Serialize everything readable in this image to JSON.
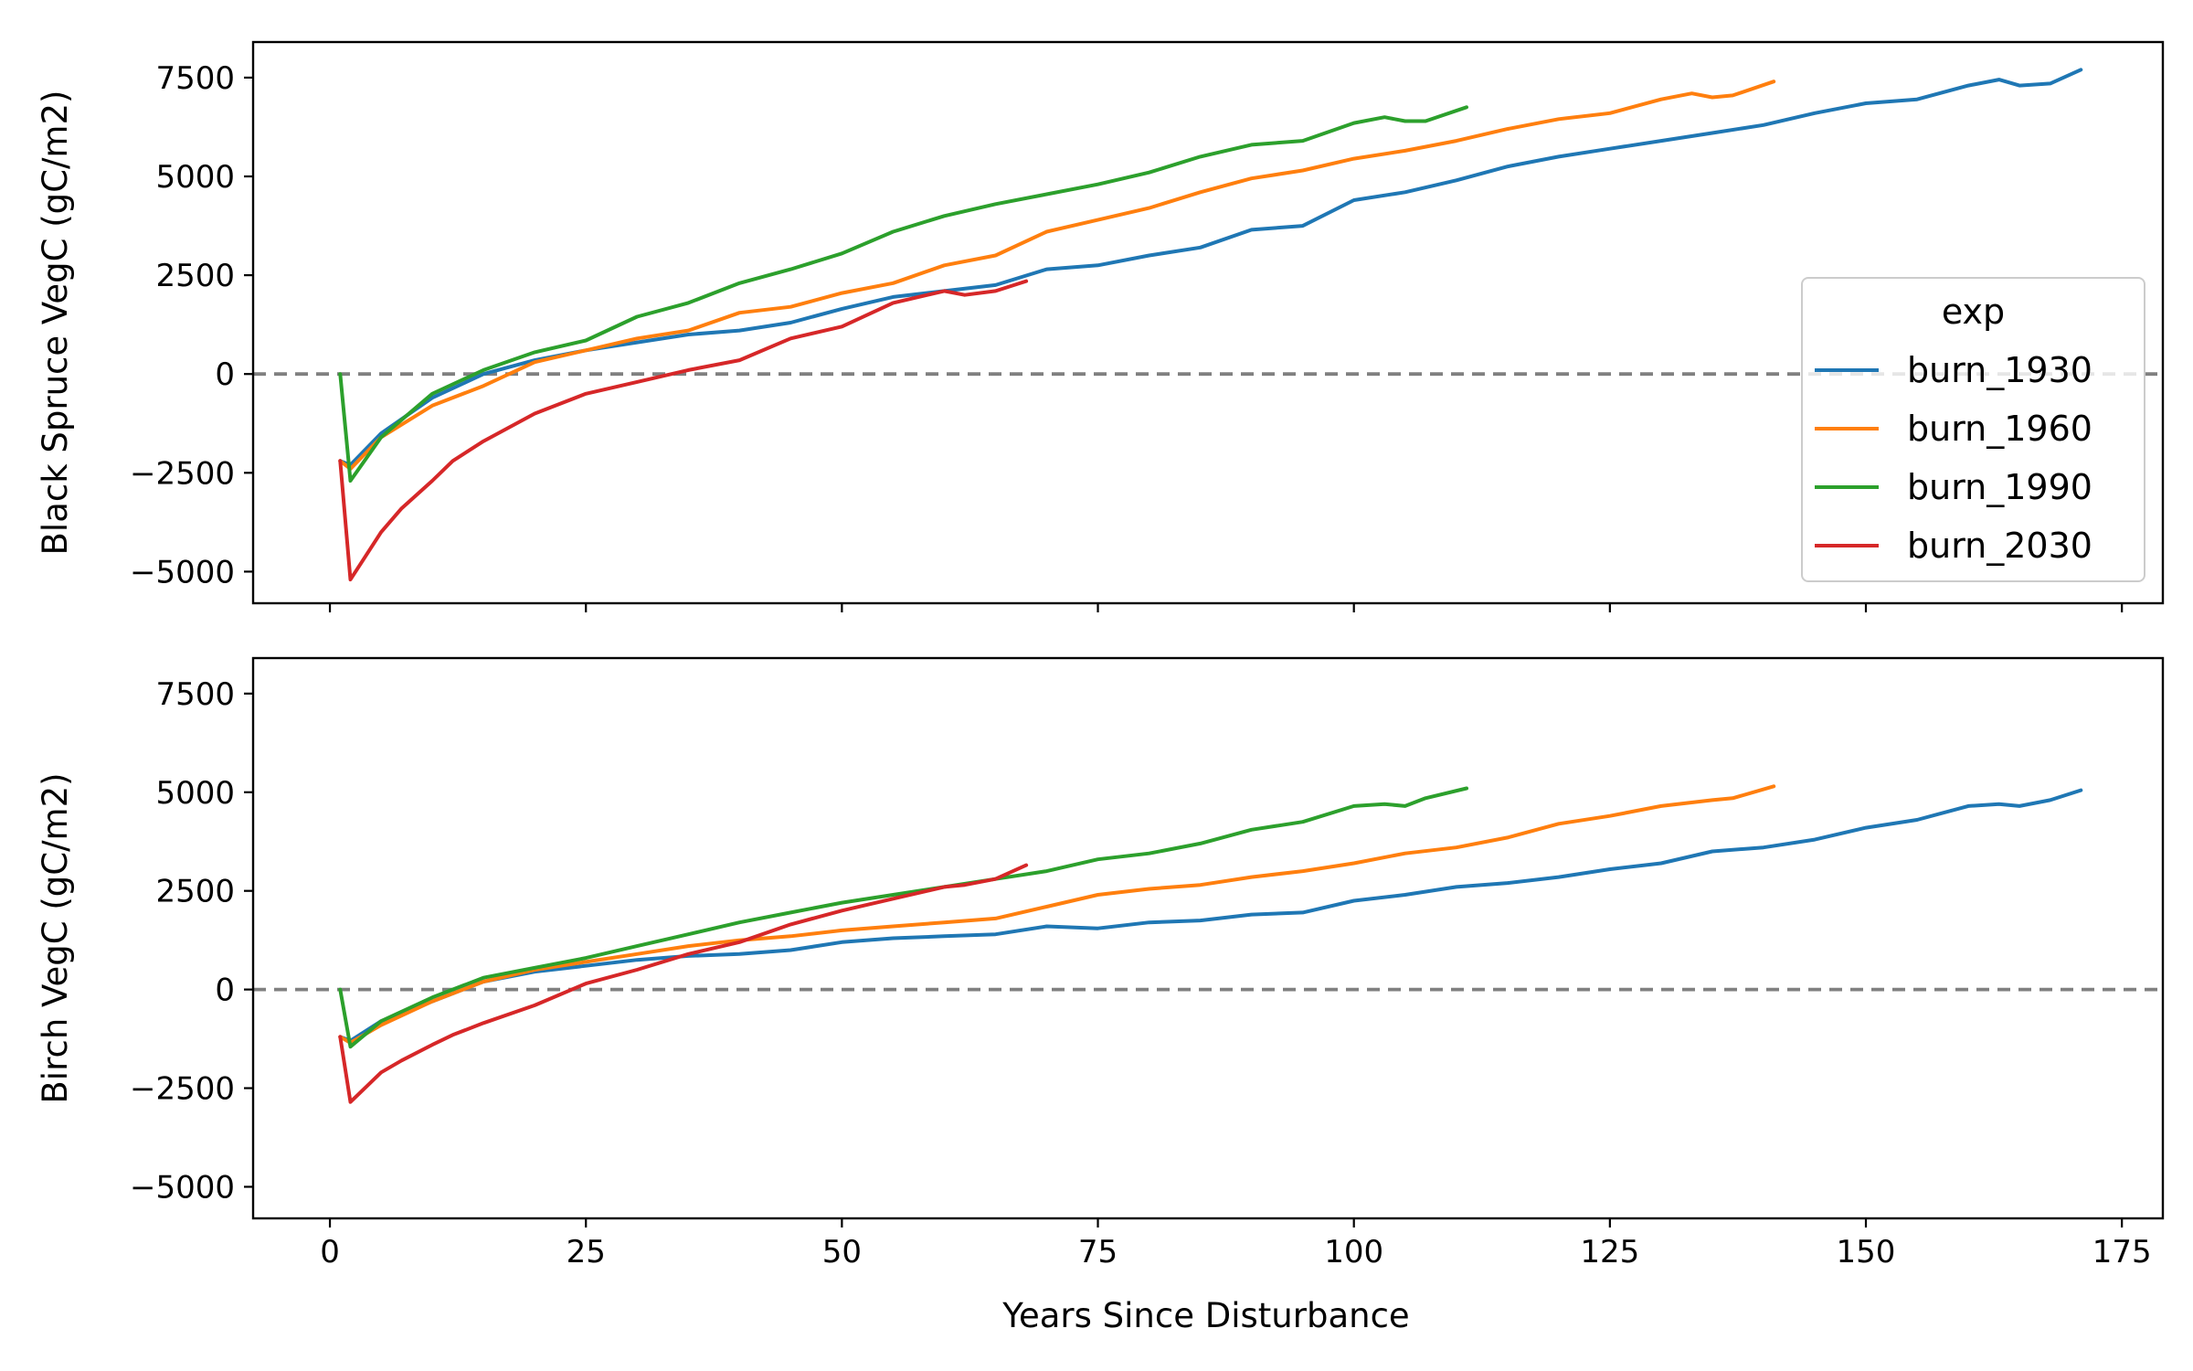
{
  "figure": {
    "xlabel": "Years Since Disturbance",
    "legend": {
      "title": "exp",
      "placement": "right"
    },
    "reference_line": {
      "y": 0,
      "color": "#808080",
      "style": "dashed"
    }
  },
  "chart_data": [
    {
      "type": "line",
      "ylabel": "Black Spruce VegC (gC/m2)",
      "xlabel": "",
      "xlim": [
        -7.5,
        179
      ],
      "ylim": [
        -5800,
        8400
      ],
      "xticks": [
        0,
        25,
        50,
        75,
        100,
        125,
        150,
        175
      ],
      "yticks": [
        -5000,
        -2500,
        0,
        2500,
        5000,
        7500
      ],
      "show_xtick_labels": false,
      "legend": true,
      "grid": false,
      "series": [
        {
          "name": "burn_1930",
          "color": "#1f77b4",
          "x": [
            1,
            2,
            5,
            10,
            15,
            20,
            25,
            30,
            35,
            40,
            45,
            50,
            55,
            60,
            65,
            70,
            75,
            80,
            85,
            90,
            95,
            100,
            105,
            110,
            115,
            120,
            125,
            130,
            135,
            140,
            145,
            150,
            155,
            160,
            163,
            165,
            168,
            171
          ],
          "y": [
            -2200,
            -2300,
            -1500,
            -600,
            0,
            350,
            600,
            800,
            1000,
            1100,
            1300,
            1650,
            1950,
            2100,
            2250,
            2650,
            2750,
            3000,
            3200,
            3650,
            3750,
            4400,
            4600,
            4900,
            5250,
            5500,
            5700,
            5900,
            6100,
            6300,
            6600,
            6850,
            6950,
            7300,
            7450,
            7300,
            7350,
            7700
          ]
        },
        {
          "name": "burn_1960",
          "color": "#ff7f0e",
          "x": [
            1,
            2,
            5,
            10,
            15,
            20,
            25,
            30,
            35,
            40,
            45,
            50,
            55,
            60,
            65,
            70,
            75,
            80,
            85,
            90,
            95,
            100,
            105,
            110,
            115,
            120,
            125,
            130,
            133,
            135,
            137,
            141
          ],
          "y": [
            -2200,
            -2400,
            -1600,
            -800,
            -300,
            300,
            600,
            900,
            1100,
            1550,
            1700,
            2050,
            2300,
            2750,
            3000,
            3600,
            3900,
            4200,
            4600,
            4950,
            5150,
            5450,
            5650,
            5900,
            6200,
            6450,
            6600,
            6950,
            7100,
            7000,
            7050,
            7400
          ]
        },
        {
          "name": "burn_1990",
          "color": "#2ca02c",
          "x": [
            1,
            2,
            5,
            10,
            15,
            20,
            25,
            30,
            35,
            40,
            45,
            50,
            55,
            60,
            65,
            70,
            75,
            80,
            85,
            90,
            95,
            100,
            103,
            105,
            107,
            111
          ],
          "y": [
            0,
            -2700,
            -1600,
            -500,
            100,
            550,
            850,
            1450,
            1800,
            2300,
            2650,
            3050,
            3600,
            4000,
            4300,
            4550,
            4800,
            5100,
            5500,
            5800,
            5900,
            6350,
            6500,
            6400,
            6400,
            6750
          ]
        },
        {
          "name": "burn_2030",
          "color": "#d62728",
          "x": [
            1,
            2,
            3,
            5,
            7,
            10,
            12,
            15,
            20,
            25,
            30,
            35,
            40,
            45,
            50,
            55,
            60,
            62,
            65,
            68
          ],
          "y": [
            -2200,
            -5200,
            -4800,
            -4000,
            -3400,
            -2700,
            -2200,
            -1700,
            -1000,
            -500,
            -200,
            100,
            350,
            900,
            1200,
            1800,
            2100,
            2000,
            2100,
            2350
          ]
        }
      ]
    },
    {
      "type": "line",
      "ylabel": "Birch VegC (gC/m2)",
      "xlabel": "Years Since Disturbance",
      "xlim": [
        -7.5,
        179
      ],
      "ylim": [
        -5800,
        8400
      ],
      "xticks": [
        0,
        25,
        50,
        75,
        100,
        125,
        150,
        175
      ],
      "yticks": [
        -5000,
        -2500,
        0,
        2500,
        5000,
        7500
      ],
      "show_xtick_labels": true,
      "legend": false,
      "grid": false,
      "series": [
        {
          "name": "burn_1930",
          "color": "#1f77b4",
          "x": [
            1,
            2,
            5,
            10,
            15,
            20,
            25,
            30,
            35,
            40,
            45,
            50,
            55,
            60,
            65,
            70,
            75,
            80,
            85,
            90,
            95,
            100,
            105,
            110,
            115,
            120,
            125,
            130,
            135,
            140,
            145,
            150,
            155,
            160,
            163,
            165,
            168,
            171
          ],
          "y": [
            -1200,
            -1300,
            -800,
            -300,
            200,
            450,
            600,
            750,
            850,
            900,
            1000,
            1200,
            1300,
            1350,
            1400,
            1600,
            1550,
            1700,
            1750,
            1900,
            1950,
            2250,
            2400,
            2600,
            2700,
            2850,
            3050,
            3200,
            3500,
            3600,
            3800,
            4100,
            4300,
            4650,
            4700,
            4650,
            4800,
            5050
          ]
        },
        {
          "name": "burn_1960",
          "color": "#ff7f0e",
          "x": [
            1,
            2,
            5,
            10,
            15,
            20,
            25,
            30,
            35,
            40,
            45,
            50,
            55,
            60,
            65,
            70,
            75,
            80,
            85,
            90,
            95,
            100,
            105,
            110,
            115,
            120,
            125,
            130,
            135,
            137,
            141
          ],
          "y": [
            -1200,
            -1350,
            -900,
            -300,
            200,
            500,
            700,
            900,
            1100,
            1250,
            1350,
            1500,
            1600,
            1700,
            1800,
            2100,
            2400,
            2550,
            2650,
            2850,
            3000,
            3200,
            3450,
            3600,
            3850,
            4200,
            4400,
            4650,
            4800,
            4850,
            5150
          ]
        },
        {
          "name": "burn_1990",
          "color": "#2ca02c",
          "x": [
            1,
            2,
            5,
            10,
            15,
            20,
            25,
            30,
            35,
            40,
            45,
            50,
            55,
            60,
            65,
            70,
            75,
            80,
            85,
            90,
            95,
            100,
            103,
            105,
            107,
            111
          ],
          "y": [
            0,
            -1450,
            -800,
            -200,
            300,
            550,
            800,
            1100,
            1400,
            1700,
            1950,
            2200,
            2400,
            2600,
            2800,
            3000,
            3300,
            3450,
            3700,
            4050,
            4250,
            4650,
            4700,
            4650,
            4850,
            5100
          ]
        },
        {
          "name": "burn_2030",
          "color": "#d62728",
          "x": [
            1,
            2,
            3,
            5,
            7,
            10,
            12,
            15,
            20,
            25,
            30,
            35,
            40,
            45,
            50,
            55,
            60,
            62,
            65,
            68
          ],
          "y": [
            -1200,
            -2850,
            -2600,
            -2100,
            -1800,
            -1400,
            -1150,
            -850,
            -400,
            150,
            500,
            900,
            1200,
            1650,
            2000,
            2300,
            2600,
            2650,
            2800,
            3150
          ]
        }
      ]
    }
  ]
}
